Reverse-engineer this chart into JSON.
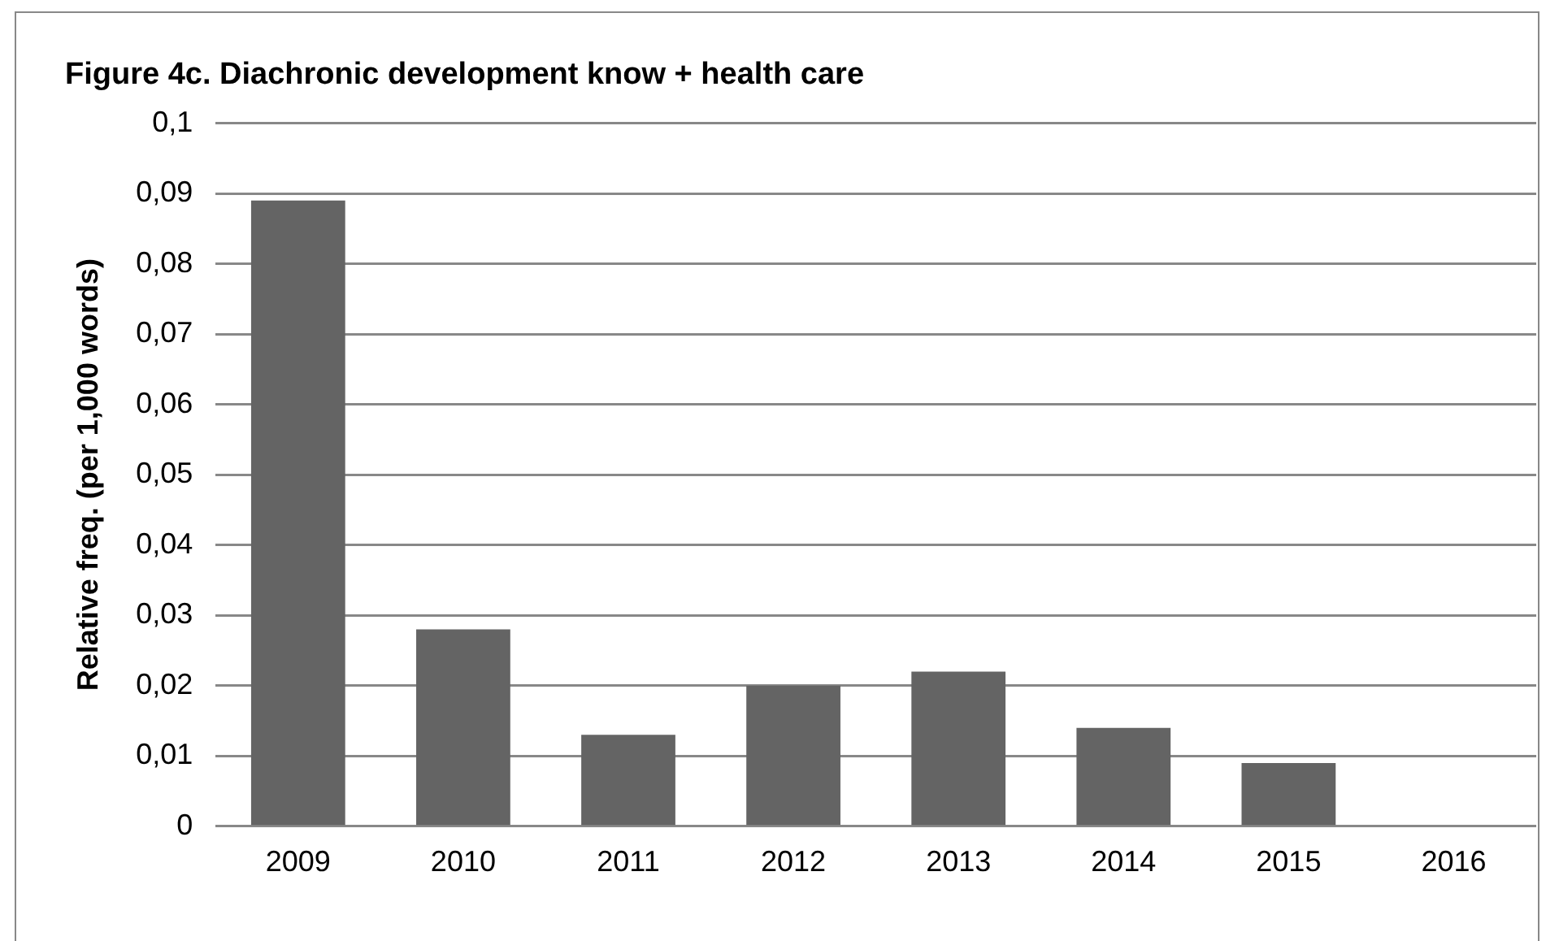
{
  "chart_data": {
    "type": "bar",
    "title": "Figure 4c. Diachronic development know + health care",
    "ylabel": "Relative freq. (per 1,000 words)",
    "categories": [
      "2009",
      "2010",
      "2011",
      "2012",
      "2013",
      "2014",
      "2015",
      "2016"
    ],
    "values": [
      0.089,
      0.028,
      0.013,
      0.02,
      0.022,
      0.014,
      0.009,
      0
    ],
    "color": "#646464",
    "ylim": [
      0,
      0.1
    ],
    "yticks": [
      0,
      {
        "value": 0.01,
        "label": "0,01"
      },
      {
        "value": 0.02,
        "label": "0,02"
      },
      {
        "value": 0.03,
        "label": "0,03"
      },
      {
        "value": 0.04,
        "label": "0,04"
      },
      {
        "value": 0.05,
        "label": "0,05"
      },
      {
        "value": 0.06,
        "label": "0,06"
      },
      {
        "value": 0.07,
        "label": "0,07"
      },
      {
        "value": 0.08,
        "label": "0,08"
      },
      {
        "value": 0.09,
        "label": "0,09"
      },
      {
        "value": 0.1,
        "label": "0,1"
      }
    ],
    "grid": "y",
    "legend": false
  }
}
